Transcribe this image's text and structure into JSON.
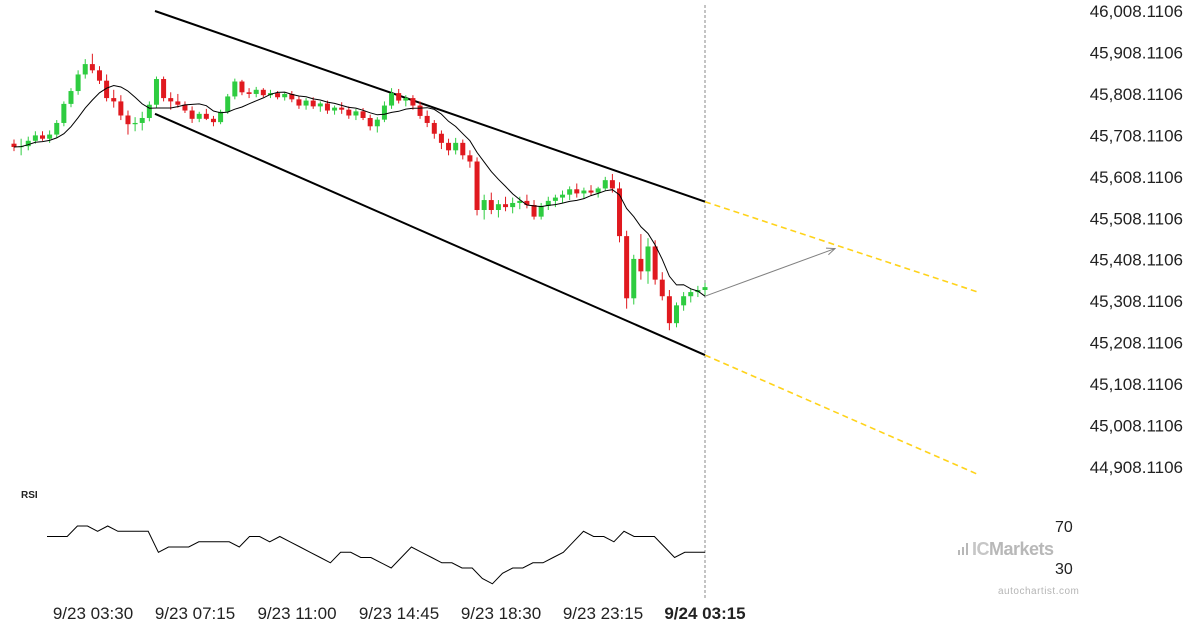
{
  "chart_data": {
    "type": "candlestick",
    "symbol_chart": {
      "y_ticks": [
        "46,008.1106",
        "45,908.1106",
        "45,808.1106",
        "45,708.1106",
        "45,608.1106",
        "45,508.1106",
        "45,408.1106",
        "45,308.1106",
        "45,208.1106",
        "45,108.1106",
        "45,008.1106",
        "44,908.1106"
      ],
      "y_values": [
        46008.1106,
        45908.1106,
        45808.1106,
        45708.1106,
        45608.1106,
        45508.1106,
        45408.1106,
        45308.1106,
        45208.1106,
        45108.1106,
        45008.1106,
        44908.1106
      ],
      "x_ticks": [
        "9/23 03:30",
        "9/23 07:15",
        "9/23 11:00",
        "9/23 14:45",
        "9/23 18:30",
        "9/23 23:15",
        "9/24 03:15"
      ],
      "current_x_tick": "9/24 03:15",
      "candles": [
        [
          45688,
          45698,
          45670,
          45680
        ],
        [
          45680,
          45700,
          45660,
          45682
        ],
        [
          45682,
          45705,
          45672,
          45695
        ],
        [
          45695,
          45718,
          45688,
          45708
        ],
        [
          45708,
          45718,
          45695,
          45700
        ],
        [
          45700,
          45720,
          45690,
          45710
        ],
        [
          45710,
          45745,
          45702,
          45738
        ],
        [
          45738,
          45790,
          45730,
          45784
        ],
        [
          45784,
          45822,
          45776,
          45815
        ],
        [
          45815,
          45865,
          45806,
          45855
        ],
        [
          45855,
          45892,
          45845,
          45880
        ],
        [
          45880,
          45905,
          45858,
          45865
        ],
        [
          45865,
          45875,
          45832,
          45840
        ],
        [
          45840,
          45855,
          45790,
          45798
        ],
        [
          45798,
          45818,
          45775,
          45790
        ],
        [
          45790,
          45805,
          45745,
          45756
        ],
        [
          45756,
          45768,
          45710,
          45735
        ],
        [
          45735,
          45752,
          45718,
          45738
        ],
        [
          45738,
          45765,
          45720,
          45750
        ],
        [
          45750,
          45790,
          45742,
          45782
        ],
        [
          45782,
          45850,
          45775,
          45844
        ],
        [
          45844,
          45850,
          45790,
          45798
        ],
        [
          45798,
          45812,
          45770,
          45790
        ],
        [
          45790,
          45808,
          45775,
          45782
        ],
        [
          45782,
          45790,
          45762,
          45768
        ],
        [
          45768,
          45778,
          45738,
          45748
        ],
        [
          45748,
          45765,
          45740,
          45760
        ],
        [
          45760,
          45772,
          45745,
          45748
        ],
        [
          45748,
          45755,
          45730,
          45740
        ],
        [
          45740,
          45770,
          45735,
          45765
        ],
        [
          45765,
          45808,
          45760,
          45802
        ],
        [
          45802,
          45845,
          45795,
          45838
        ],
        [
          45838,
          45842,
          45805,
          45812
        ],
        [
          45812,
          45822,
          45798,
          45808
        ],
        [
          45808,
          45825,
          45800,
          45818
        ],
        [
          45818,
          45822,
          45800,
          45805
        ],
        [
          45805,
          45818,
          45798,
          45810
        ],
        [
          45810,
          45815,
          45795,
          45800
        ],
        [
          45800,
          45812,
          45792,
          45808
        ],
        [
          45808,
          45815,
          45788,
          45795
        ],
        [
          45795,
          45802,
          45772,
          45780
        ],
        [
          45780,
          45798,
          45770,
          45792
        ],
        [
          45792,
          45800,
          45772,
          45778
        ],
        [
          45778,
          45790,
          45765,
          45785
        ],
        [
          45785,
          45792,
          45760,
          45768
        ],
        [
          45768,
          45780,
          45758,
          45775
        ],
        [
          45775,
          45788,
          45760,
          45770
        ],
        [
          45770,
          45778,
          45748,
          45756
        ],
        [
          45756,
          45772,
          45745,
          45766
        ],
        [
          45766,
          45774,
          45745,
          45750
        ],
        [
          45750,
          45758,
          45720,
          45730
        ],
        [
          45730,
          45752,
          45715,
          45746
        ],
        [
          45746,
          45790,
          45740,
          45780
        ],
        [
          45780,
          45822,
          45772,
          45810
        ],
        [
          45810,
          45820,
          45785,
          45792
        ],
        [
          45792,
          45805,
          45778,
          45798
        ],
        [
          45798,
          45805,
          45770,
          45780
        ],
        [
          45780,
          45790,
          45748,
          45755
        ],
        [
          45755,
          45768,
          45728,
          45738
        ],
        [
          45738,
          45745,
          45700,
          45712
        ],
        [
          45712,
          45720,
          45675,
          45690
        ],
        [
          45690,
          45700,
          45660,
          45672
        ],
        [
          45672,
          45702,
          45662,
          45690
        ],
        [
          45690,
          45698,
          45650,
          45660
        ],
        [
          45660,
          45672,
          45630,
          45645
        ],
        [
          45645,
          45655,
          45515,
          45528
        ],
        [
          45528,
          45565,
          45505,
          45552
        ],
        [
          45552,
          45570,
          45518,
          45528
        ],
        [
          45528,
          45552,
          45510,
          45542
        ],
        [
          45542,
          45560,
          45525,
          45535
        ],
        [
          45535,
          45558,
          45520,
          45545
        ],
        [
          45545,
          45560,
          45530,
          45550
        ],
        [
          45550,
          45565,
          45532,
          45540
        ],
        [
          45540,
          45552,
          45505,
          45512
        ],
        [
          45512,
          45545,
          45505,
          45538
        ],
        [
          45538,
          45560,
          45528,
          45550
        ],
        [
          45550,
          45565,
          45535,
          45558
        ],
        [
          45558,
          45575,
          45545,
          45565
        ],
        [
          45565,
          45585,
          45552,
          45578
        ],
        [
          45578,
          45592,
          45558,
          45568
        ],
        [
          45568,
          45582,
          45555,
          45575
        ],
        [
          45575,
          45588,
          45562,
          45570
        ],
        [
          45570,
          45584,
          45558,
          45580
        ],
        [
          45580,
          45608,
          45575,
          45600
        ],
        [
          45600,
          45615,
          45570,
          45580
        ],
        [
          45580,
          45595,
          45450,
          45465
        ],
        [
          45465,
          45478,
          45290,
          45315
        ],
        [
          45315,
          45420,
          45300,
          45410
        ],
        [
          45410,
          45470,
          45360,
          45380
        ],
        [
          45380,
          45460,
          45350,
          45440
        ],
        [
          45440,
          45455,
          45348,
          45360
        ],
        [
          45360,
          45378,
          45310,
          45320
        ],
        [
          45320,
          45335,
          45238,
          45255
        ],
        [
          45255,
          45305,
          45245,
          45298
        ],
        [
          45298,
          45330,
          45285,
          45320
        ],
        [
          45320,
          45338,
          45305,
          45330
        ],
        [
          45330,
          45345,
          45318,
          45335
        ],
        [
          45335,
          45352,
          45322,
          45342
        ]
      ],
      "ma_label": ""
    },
    "rsi": {
      "label": "RSI",
      "y_ticks": [
        "70",
        "30"
      ],
      "values": [
        60,
        60,
        60,
        70,
        70,
        65,
        70,
        65,
        65,
        65,
        65,
        45,
        50,
        50,
        50,
        55,
        55,
        55,
        55,
        50,
        60,
        60,
        55,
        60,
        55,
        50,
        45,
        40,
        35,
        45,
        45,
        40,
        40,
        35,
        30,
        40,
        50,
        45,
        40,
        35,
        35,
        30,
        30,
        20,
        15,
        25,
        30,
        30,
        35,
        35,
        40,
        45,
        55,
        65,
        60,
        60,
        55,
        65,
        60,
        60,
        60,
        50,
        40,
        45,
        45,
        45
      ]
    },
    "colors": {
      "up": "#2ecc40",
      "down": "#e0191f",
      "channel": "#000000",
      "projection": "#ffd31a",
      "ma": "#000000",
      "projection_arrow": "#808080",
      "vline": "#888888"
    },
    "xlabel": "",
    "ylabel": ""
  },
  "branding": {
    "logo": "ICMarkets",
    "logo_prefix": "IC",
    "logo_suffix": "Markets",
    "watermark": "autochartist.com"
  }
}
